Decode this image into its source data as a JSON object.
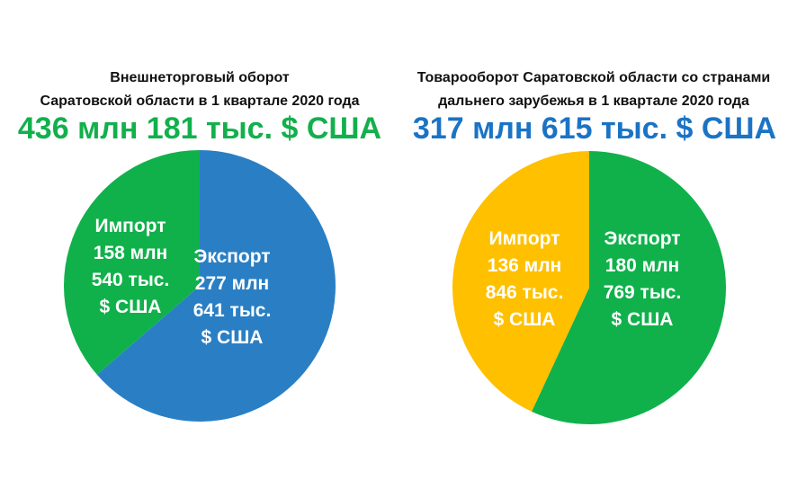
{
  "chart_data": [
    {
      "type": "pie",
      "title_lines": [
        "Внешнеторговый оборот",
        "Саратовской области в 1 квартале 2020 года"
      ],
      "total": "436 млн 181 тыс. $ США",
      "total_color": "#12b04c",
      "slices": [
        {
          "name": "Экспорт",
          "value": 277.641,
          "color": "#2a7fc4",
          "label": [
            "Экспорт",
            "277 млн",
            "641 тыс.",
            "$ США"
          ]
        },
        {
          "name": "Импорт",
          "value": 158.54,
          "color": "#10b14b",
          "label": [
            "Импорт",
            "158 млн",
            "540 тыс.",
            "$ США"
          ]
        }
      ],
      "start": "12 o'clock",
      "direction": "clockwise"
    },
    {
      "type": "pie",
      "title_lines": [
        "Товарооборот Саратовской области со странами",
        "дальнего зарубежья в 1 квартале 2020 года"
      ],
      "total": "317 млн 615 тыс. $ США",
      "total_color": "#1b73c5",
      "slices": [
        {
          "name": "Экспорт",
          "value": 180.769,
          "color": "#10b14b",
          "label": [
            "Экспорт",
            "180 млн",
            "769 тыс.",
            "$ США"
          ]
        },
        {
          "name": "Импорт",
          "value": 136.846,
          "color": "#ffc000",
          "label": [
            "Импорт",
            "136 млн",
            "846 тыс.",
            "$ США"
          ]
        }
      ],
      "start": "12 o'clock",
      "direction": "clockwise"
    }
  ]
}
